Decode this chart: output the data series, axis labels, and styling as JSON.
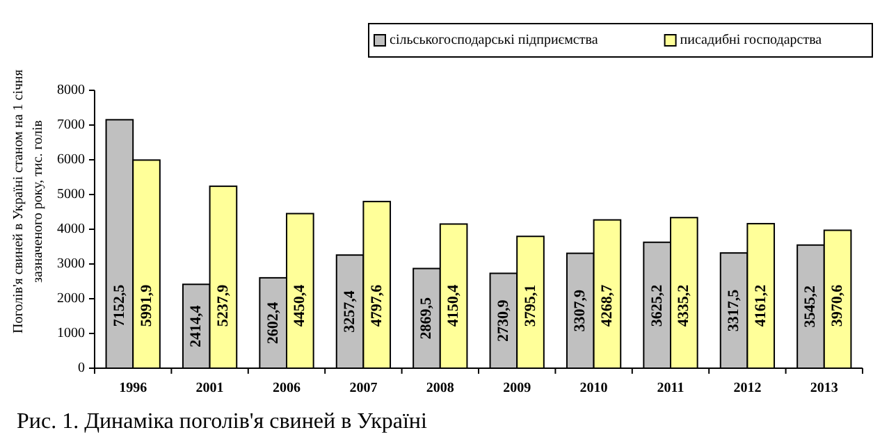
{
  "chart_data": {
    "type": "bar",
    "title": "Рис. 1. Динаміка поголів'я свиней в Україні",
    "ylabel": "Поголів'я свиней в Україні станом на 1 січня зазначеного року, тис. голів",
    "categories": [
      "1996",
      "2001",
      "2006",
      "2007",
      "2008",
      "2009",
      "2010",
      "2011",
      "2012",
      "2013"
    ],
    "series": [
      {
        "name": "сільськогосподарські підприємства",
        "color": "#c0c0c0",
        "values": [
          7152.5,
          2414.4,
          2602.4,
          3257.4,
          2869.5,
          2730.9,
          3307.9,
          3625.2,
          3317.5,
          3545.2
        ],
        "value_labels": [
          "7152,5",
          "2414,4",
          "2602,4",
          "3257,4",
          "2869,5",
          "2730,9",
          "3307,9",
          "3625,2",
          "3317,5",
          "3545,2"
        ]
      },
      {
        "name": "писадибні господарства",
        "color": "#ffff99",
        "values": [
          5991.9,
          5237.9,
          4450.4,
          4797.6,
          4150.4,
          3795.1,
          4268.7,
          4335.2,
          4161.2,
          3970.6
        ],
        "value_labels": [
          "5991,9",
          "5237,9",
          "4450,4",
          "4797,6",
          "4150,4",
          "3795,1",
          "4268,7",
          "4335,2",
          "4161,2",
          "3970,6"
        ]
      }
    ],
    "ylim": [
      0,
      8000
    ],
    "yticks": [
      0,
      1000,
      2000,
      3000,
      4000,
      5000,
      6000,
      7000,
      8000
    ],
    "grid": false,
    "legend": "top right"
  }
}
